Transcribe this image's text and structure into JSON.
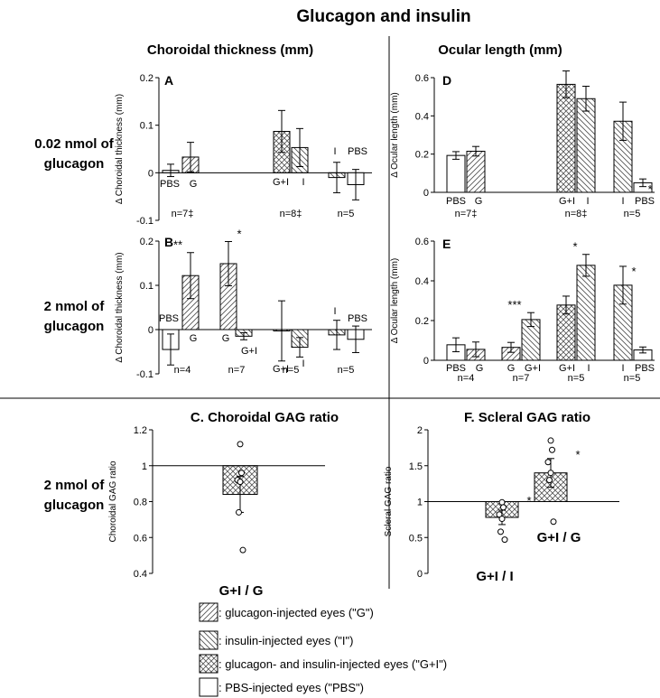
{
  "title": "Glucagon and insulin",
  "column_headers": {
    "choroid": "Choroidal thickness (mm)",
    "ocular": "Ocular length (mm)"
  },
  "row_labels": {
    "row1": [
      "0.02 nmol of",
      "glucagon"
    ],
    "row2": [
      "2 nmol of",
      "glucagon"
    ],
    "row3": [
      "2 nmol of",
      "glucagon"
    ]
  },
  "legend": [
    {
      "pattern": "hatch-right",
      "label": ": glucagon-injected eyes (\"G\")"
    },
    {
      "pattern": "hatch-left",
      "label": ": insulin-injected eyes (\"I\")"
    },
    {
      "pattern": "crosshatch",
      "label": ": glucagon- and insulin-injected eyes (\"G+I\")"
    },
    {
      "pattern": "none",
      "label": ": PBS-injected eyes (\"PBS\")"
    }
  ],
  "chart_data": [
    {
      "id": "A",
      "type": "bar",
      "letter": "A",
      "ylabel": "Δ Choroidal thickness (mm)",
      "ylim": [
        -0.1,
        0.2
      ],
      "yticks": [
        "0.2",
        "0.1",
        "0",
        "-0.1"
      ],
      "bars": [
        {
          "label": "PBS",
          "value": 0.005,
          "err": 0.013,
          "pattern": "none"
        },
        {
          "label": "G",
          "value": 0.033,
          "err": 0.031,
          "pattern": "hatch-right"
        },
        {
          "label": "G+I",
          "value": 0.087,
          "err": 0.044,
          "pattern": "crosshatch"
        },
        {
          "label": "I",
          "value": 0.053,
          "err": 0.04,
          "pattern": "hatch-left"
        },
        {
          "label": "I",
          "value": -0.01,
          "err": 0.032,
          "pattern": "hatch-left"
        },
        {
          "label": "PBS",
          "value": -0.025,
          "err": 0.032,
          "pattern": "none"
        }
      ],
      "n_labels": [
        "n=7‡",
        "n=8‡",
        "n=5"
      ],
      "stars": []
    },
    {
      "id": "B",
      "type": "bar",
      "letter": "B",
      "ylabel": "Δ Choroidal thickness (mm)",
      "ylim": [
        -0.1,
        0.2
      ],
      "yticks": [
        "0.2",
        "0.1",
        "0",
        "-0.1"
      ],
      "bars": [
        {
          "label": "PBS",
          "value": -0.045,
          "err": 0.035,
          "pattern": "none"
        },
        {
          "label": "G",
          "value": 0.122,
          "err": 0.052,
          "pattern": "hatch-right"
        },
        {
          "label": "G",
          "value": 0.149,
          "err": 0.05,
          "pattern": "hatch-right"
        },
        {
          "label": "G+I",
          "value": -0.015,
          "err": 0.008,
          "pattern": "hatch-left"
        },
        {
          "label": "G+I",
          "value": -0.003,
          "err": 0.068,
          "pattern": "crosshatch"
        },
        {
          "label": "I",
          "value": -0.04,
          "err": 0.022,
          "pattern": "hatch-left"
        },
        {
          "label": "I",
          "value": -0.012,
          "err": 0.033,
          "pattern": "hatch-left"
        },
        {
          "label": "PBS",
          "value": -0.022,
          "err": 0.03,
          "pattern": "none"
        }
      ],
      "n_labels": [
        "n=4",
        "n=7",
        "n=5",
        "n=5"
      ],
      "stars": [
        {
          "bar": 1,
          "text": "**"
        },
        {
          "bar": 2,
          "text": "*"
        }
      ]
    },
    {
      "id": "D",
      "type": "bar",
      "letter": "D",
      "ylabel": "Δ Ocular length (mm)",
      "ylim": [
        0,
        0.6
      ],
      "yticks": [
        "0.6",
        "0.4",
        "0.2",
        "0"
      ],
      "bars": [
        {
          "label": "PBS",
          "value": 0.193,
          "err": 0.02,
          "pattern": "none"
        },
        {
          "label": "G",
          "value": 0.215,
          "err": 0.025,
          "pattern": "hatch-right"
        },
        {
          "label": "G+I",
          "value": 0.565,
          "err": 0.07,
          "pattern": "crosshatch"
        },
        {
          "label": "I",
          "value": 0.49,
          "err": 0.065,
          "pattern": "hatch-left"
        },
        {
          "label": "I",
          "value": 0.372,
          "err": 0.1,
          "pattern": "hatch-left"
        },
        {
          "label": "PBS",
          "value": 0.05,
          "err": 0.02,
          "pattern": "none"
        }
      ],
      "n_labels": [
        "n=7‡",
        "n=8‡",
        "n=5"
      ],
      "stars": [
        {
          "bar": 5,
          "text": "*"
        }
      ]
    },
    {
      "id": "E",
      "type": "bar",
      "letter": "E",
      "ylabel": "Δ Ocular length (mm)",
      "ylim": [
        0,
        0.6
      ],
      "yticks": [
        "0.6",
        "0.4",
        "0.2",
        "0"
      ],
      "bars": [
        {
          "label": "PBS",
          "value": 0.078,
          "err": 0.035,
          "pattern": "none"
        },
        {
          "label": "G",
          "value": 0.055,
          "err": 0.037,
          "pattern": "hatch-right"
        },
        {
          "label": "G",
          "value": 0.065,
          "err": 0.025,
          "pattern": "hatch-right"
        },
        {
          "label": "G+I",
          "value": 0.205,
          "err": 0.035,
          "pattern": "hatch-left"
        },
        {
          "label": "G+I",
          "value": 0.278,
          "err": 0.045,
          "pattern": "crosshatch"
        },
        {
          "label": "I",
          "value": 0.478,
          "err": 0.055,
          "pattern": "hatch-left"
        },
        {
          "label": "I",
          "value": 0.378,
          "err": 0.095,
          "pattern": "hatch-left"
        },
        {
          "label": "PBS",
          "value": 0.052,
          "err": 0.015,
          "pattern": "none"
        }
      ],
      "n_labels": [
        "n=4",
        "n=7",
        "n=5",
        "n=5"
      ],
      "stars": [
        {
          "bar": 3,
          "text": "***"
        },
        {
          "bar": 5,
          "text": "*"
        },
        {
          "bar": 6,
          "text": "*"
        }
      ]
    },
    {
      "id": "C",
      "type": "bar",
      "title": "C. Choroidal GAG ratio",
      "ylabel": "Choroidal GAG ratio",
      "ylim": [
        0.4,
        1.2
      ],
      "yticks": [
        "1.2",
        "1",
        "0.8",
        "0.6",
        "0.4"
      ],
      "baseline": 1,
      "bars": [
        {
          "label": "G+I / G",
          "value": 0.84,
          "err": 0.1,
          "pattern": "crosshatch",
          "points": [
            1.12,
            0.96,
            0.92,
            0.91,
            0.74,
            0.53
          ]
        }
      ],
      "stars": []
    },
    {
      "id": "F",
      "type": "bar",
      "title": "F. Scleral GAG ratio",
      "ylabel": "Scleral GAG ratio",
      "ylim": [
        0,
        2
      ],
      "yticks": [
        "2",
        "1.5",
        "1",
        "0.5",
        "0"
      ],
      "baseline": 1,
      "bars": [
        {
          "label": "G+I / I",
          "value": 0.78,
          "err": 0.1,
          "pattern": "crosshatch",
          "points": [
            0.99,
            0.92,
            0.82,
            0.76,
            0.58,
            0.47
          ]
        },
        {
          "label": "G+I / G",
          "value": 1.4,
          "err": 0.2,
          "pattern": "crosshatch",
          "points": [
            1.85,
            1.72,
            1.55,
            1.4,
            1.3,
            0.72
          ]
        }
      ],
      "stars": [
        {
          "bar": 0,
          "text": "*"
        },
        {
          "bar": 1,
          "text": "*"
        }
      ]
    }
  ]
}
